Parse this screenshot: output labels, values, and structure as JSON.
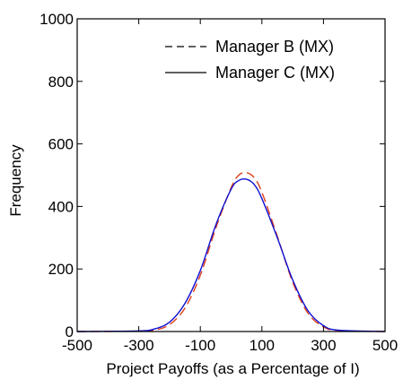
{
  "chart_data": {
    "type": "line",
    "xlabel": "Project Payoffs (as a Percentage of I)",
    "ylabel": "Frequency",
    "xlim": [
      -500,
      500
    ],
    "ylim": [
      0,
      1000
    ],
    "x_ticks": [
      -500,
      -300,
      -100,
      100,
      300,
      500
    ],
    "y_ticks": [
      0,
      200,
      400,
      600,
      800,
      1000
    ],
    "x_tick_labels": [
      "-500",
      "-300",
      "-100",
      "100",
      "300",
      "500"
    ],
    "y_tick_labels": [
      "0",
      "200",
      "400",
      "600",
      "800",
      "1000"
    ],
    "grid": false,
    "legend_position": "top-right",
    "series": [
      {
        "name": "Manager B (MX)",
        "style": "dashed",
        "color": "#e0401c",
        "x": [
          -500,
          -300,
          -250,
          -200,
          -150,
          -100,
          -50,
          0,
          25,
          50,
          75,
          100,
          150,
          200,
          250,
          300,
          350,
          500
        ],
        "y": [
          0,
          1,
          4,
          22,
          75,
          180,
          330,
          460,
          500,
          508,
          492,
          445,
          305,
          158,
          58,
          15,
          3,
          0
        ]
      },
      {
        "name": "Manager C (MX)",
        "style": "solid",
        "color": "#1010d0",
        "x": [
          -500,
          -300,
          -250,
          -200,
          -150,
          -100,
          -50,
          0,
          25,
          50,
          75,
          100,
          150,
          200,
          250,
          300,
          350,
          500
        ],
        "y": [
          0,
          2,
          8,
          30,
          90,
          195,
          340,
          455,
          483,
          487,
          470,
          425,
          300,
          165,
          66,
          19,
          4,
          0
        ]
      }
    ]
  }
}
